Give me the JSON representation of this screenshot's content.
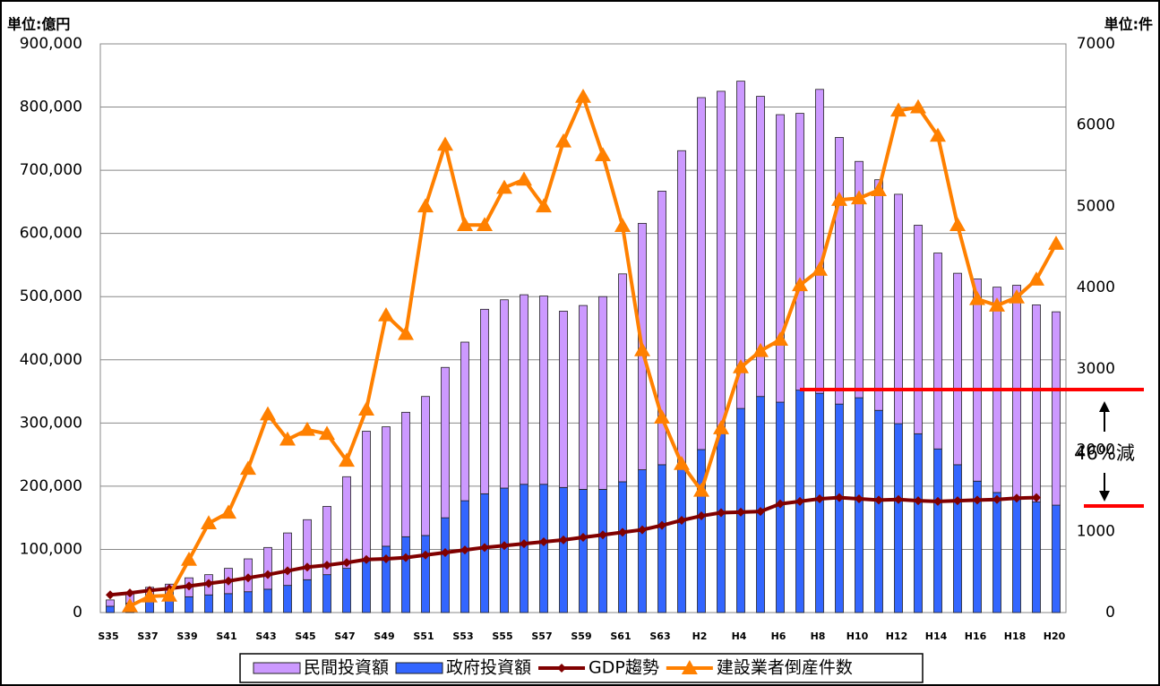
{
  "chart_data": {
    "type": "bar",
    "stacked": true,
    "y_label": "単位:億円",
    "y2_label": "単位:件",
    "annotations": [
      "46%減"
    ],
    "categories": [
      "S35",
      null,
      "S37",
      null,
      "S39",
      null,
      "S41",
      null,
      "S43",
      null,
      "S45",
      null,
      "S47",
      null,
      "S49",
      null,
      "S51",
      null,
      "S53",
      null,
      "S55",
      null,
      "S57",
      null,
      "S59",
      null,
      "S61",
      null,
      "S63",
      null,
      "H2",
      null,
      "H4",
      null,
      "H6",
      null,
      "H8",
      null,
      "H10",
      null,
      "H12",
      null,
      "H14",
      null,
      "H16",
      null,
      "H18",
      null,
      "H20"
    ],
    "series": [
      {
        "name": "民間投資額",
        "type": "bar",
        "axis": "y",
        "color": "#cc99ff",
        "values": [
          10000,
          15000,
          20000,
          23000,
          30000,
          32000,
          40000,
          52000,
          66000,
          83000,
          95000,
          108000,
          145000,
          205000,
          189000,
          197000,
          220000,
          238000,
          251000,
          292000,
          298000,
          300000,
          298000,
          279000,
          291000,
          305000,
          329000,
          390000,
          433000,
          503000,
          557000,
          540000,
          518000,
          475000,
          455000,
          438000,
          481000,
          422000,
          374000,
          365000,
          363000,
          330000,
          310000,
          303000,
          320000,
          325000,
          338000,
          312000,
          306000
        ]
      },
      {
        "name": "政府投資額",
        "type": "bar",
        "axis": "y",
        "color": "#3366ff",
        "values": [
          10000,
          15000,
          20000,
          22000,
          25000,
          28000,
          30000,
          33000,
          37000,
          43000,
          52000,
          60000,
          70000,
          82000,
          105000,
          120000,
          122000,
          150000,
          177000,
          188000,
          197000,
          203000,
          203000,
          198000,
          195000,
          195000,
          207000,
          226000,
          234000,
          228000,
          258000,
          285000,
          323000,
          342000,
          333000,
          352000,
          347000,
          330000,
          340000,
          320000,
          299000,
          283000,
          259000,
          234000,
          208000,
          190000,
          180000,
          175000,
          170000
        ]
      },
      {
        "name": "GDP趨勢",
        "type": "line",
        "marker": "diamond",
        "axis": "y",
        "color": "#800000",
        "values": [
          28000,
          31000,
          35000,
          38000,
          42000,
          46000,
          50000,
          55000,
          60000,
          66000,
          72000,
          75000,
          79000,
          84000,
          85000,
          87000,
          91000,
          95000,
          99000,
          103000,
          106000,
          109000,
          112000,
          115000,
          119000,
          123000,
          127000,
          131000,
          138000,
          146000,
          153000,
          158000,
          159000,
          160000,
          172000,
          176000,
          180000,
          182000,
          180000,
          178000,
          179000,
          177000,
          176000,
          177000,
          178000,
          179000,
          181000,
          182000,
          null
        ]
      },
      {
        "name": "建設業者倒産件数",
        "type": "line",
        "marker": "triangle",
        "axis": "y2",
        "color": "#ff8000",
        "values": [
          null,
          80,
          200,
          210,
          650,
          1100,
          1230,
          1770,
          2440,
          2130,
          2250,
          2200,
          1870,
          2500,
          3660,
          3430,
          5000,
          5760,
          4770,
          4770,
          5230,
          5330,
          5000,
          5800,
          6350,
          5630,
          4760,
          3230,
          2400,
          1830,
          1500,
          2270,
          3020,
          3220,
          3360,
          4030,
          4220,
          5080,
          5100,
          5200,
          6180,
          6220,
          5870,
          4770,
          3860,
          3780,
          3880,
          4100,
          4540
        ]
      }
    ],
    "ylim": [
      0,
      900000
    ],
    "yticks": [
      0,
      {
        "value": 100000,
        "label": "100,000"
      },
      {
        "value": 200000,
        "label": "200,000"
      },
      {
        "value": 300000,
        "label": "300,000"
      },
      {
        "value": 400000,
        "label": "400,000"
      },
      {
        "value": 500000,
        "label": "500,000"
      },
      {
        "value": 600000,
        "label": "600,000"
      },
      {
        "value": 700000,
        "label": "700,000"
      },
      {
        "value": 800000,
        "label": "800,000"
      },
      {
        "value": 900000,
        "label": "900,000"
      }
    ],
    "y2lim": [
      0,
      7000
    ],
    "y2ticks": [
      0,
      1000,
      2000,
      3000,
      4000,
      5000,
      6000,
      7000
    ],
    "grid": true,
    "legend": "bottom"
  }
}
